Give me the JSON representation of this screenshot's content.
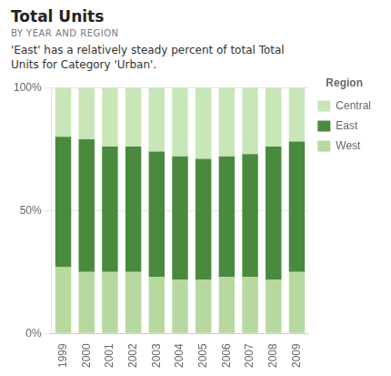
{
  "chart_data": {
    "type": "bar",
    "stacked": true,
    "title": "Total Units",
    "subtitle": "BY YEAR AND REGION",
    "annotations": [
      "'East' has a relatively steady percent of total Total",
      "Units for Category 'Urban'."
    ],
    "categories": [
      "1999",
      "2000",
      "2001",
      "2002",
      "2003",
      "2004",
      "2005",
      "2006",
      "2007",
      "2008",
      "2009"
    ],
    "series": [
      {
        "name": "West",
        "color": "#b7d9a0",
        "values": [
          0.27,
          0.25,
          0.25,
          0.25,
          0.23,
          0.22,
          0.22,
          0.23,
          0.23,
          0.22,
          0.25
        ]
      },
      {
        "name": "East",
        "color": "#4a8a3f",
        "values": [
          0.53,
          0.54,
          0.51,
          0.51,
          0.51,
          0.5,
          0.49,
          0.49,
          0.5,
          0.54,
          0.53
        ]
      },
      {
        "name": "Central",
        "color": "#c8e6b8",
        "values": [
          0.2,
          0.21,
          0.24,
          0.24,
          0.26,
          0.28,
          0.29,
          0.28,
          0.27,
          0.24,
          0.22
        ]
      }
    ],
    "legend": "right",
    "legend_title": "Region",
    "ylim": [
      0,
      1.0
    ],
    "yticks": [
      {
        "value": 0,
        "label": "0%"
      },
      {
        "value": 0.5,
        "label": "50%"
      },
      {
        "value": 1.0,
        "label": "100%"
      }
    ],
    "grid": true
  }
}
